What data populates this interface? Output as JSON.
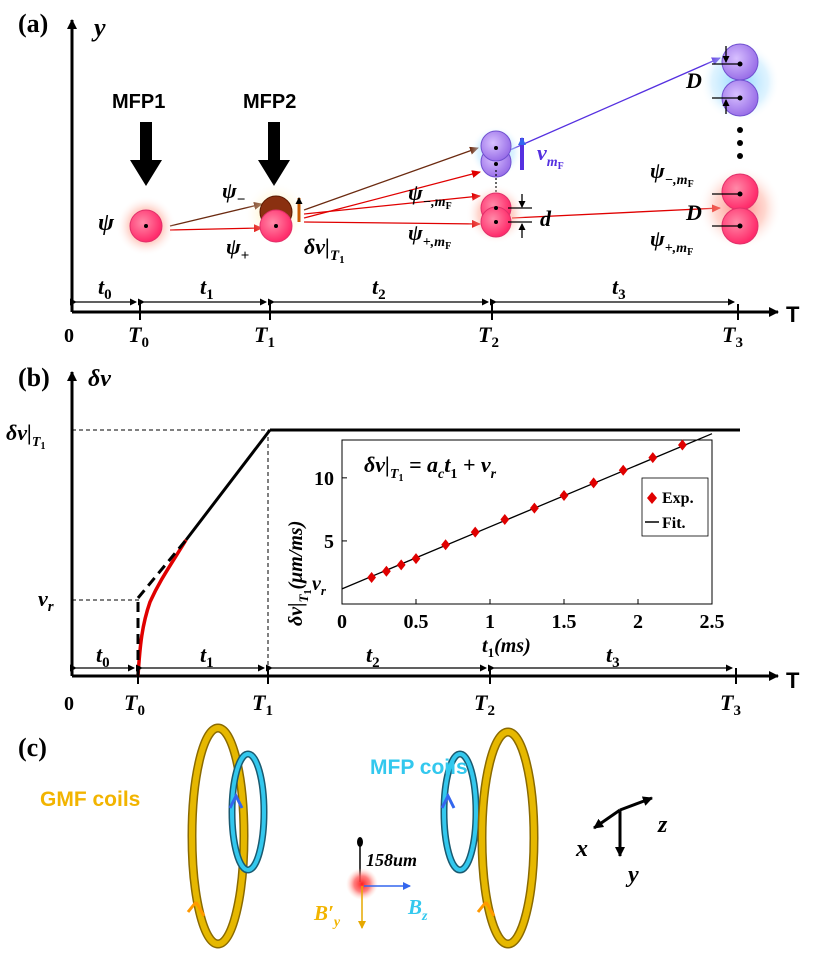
{
  "panels": {
    "a": {
      "label": "(a)",
      "y_axis": "y",
      "x_axis": "T",
      "origin": "0",
      "pulse1": "MFP1",
      "pulse2": "MFP2",
      "psi": "ψ",
      "psi_minus": "ψ",
      "psi_minus_sub": "−",
      "psi_plus": "ψ",
      "psi_plus_sub": "+",
      "delta_v": "δv|",
      "delta_v_sub": "T",
      "delta_v_sub2": "1",
      "psi_minus_mf": "ψ",
      "psi_minus_mf_sub": "−,m",
      "psi_minus_mf_sub2": "F",
      "psi_plus_mf": "ψ",
      "psi_plus_mf_sub": "+,m",
      "psi_plus_mf_sub2": "F",
      "v_mf": "v",
      "v_mf_sub": "m",
      "v_mf_sub2": "F",
      "d": "d",
      "D_top": "D",
      "D_mid": "D",
      "psi_minus_mf_right": "ψ",
      "psi_plus_mf_right": "ψ",
      "intervals": [
        {
          "name": "t",
          "sub": "0"
        },
        {
          "name": "t",
          "sub": "1"
        },
        {
          "name": "t",
          "sub": "2"
        },
        {
          "name": "t",
          "sub": "3"
        }
      ],
      "ticks": [
        {
          "name": "T",
          "sub": "0"
        },
        {
          "name": "T",
          "sub": "1"
        },
        {
          "name": "T",
          "sub": "2"
        },
        {
          "name": "T",
          "sub": "3"
        }
      ]
    },
    "b": {
      "label": "(b)",
      "y_axis": "δv",
      "x_axis": "T",
      "origin": "0",
      "level_label": "δv|",
      "level_sub": "T",
      "level_sub2": "1",
      "vr_label": "v",
      "vr_sub": "r",
      "intervals": [
        {
          "name": "t",
          "sub": "0"
        },
        {
          "name": "t",
          "sub": "1"
        },
        {
          "name": "t",
          "sub": "2"
        },
        {
          "name": "t",
          "sub": "3"
        }
      ],
      "ticks": [
        {
          "name": "T",
          "sub": "0"
        },
        {
          "name": "T",
          "sub": "1"
        },
        {
          "name": "T",
          "sub": "2"
        },
        {
          "name": "T",
          "sub": "3"
        }
      ]
    },
    "c": {
      "label": "(c)",
      "gmf_label": "GMF coils",
      "mfp_label": "MFP coils",
      "distance": "158um",
      "by_label": "B′",
      "by_sub": "y",
      "bz_label": "B",
      "bz_sub": "z",
      "axis_x": "x",
      "axis_y": "y",
      "axis_z": "z"
    }
  },
  "chart_data": {
    "type": "scatter",
    "title": "δv|T1 = a_c t1 + v_r",
    "formula_lhs": "δv|",
    "formula_sub": "T",
    "formula_sub2": "1",
    "formula_rhs": " = a",
    "formula_c": "c",
    "formula_t": "t",
    "formula_t_sub": "1",
    "formula_end": " + v",
    "formula_r": "r",
    "xlabel": "t₁(ms)",
    "xlabel_main": "t",
    "xlabel_sub": "1",
    "xlabel_unit": "(ms)",
    "ylabel": "δv|T1 (μm/ms)",
    "ylabel_main": "δv|",
    "ylabel_sub": "T",
    "ylabel_sub2": "1",
    "ylabel_unit": "(μm/ms)",
    "xlim": [
      0,
      2.5
    ],
    "ylim": [
      0,
      13
    ],
    "xticks": [
      "0",
      "0.5",
      "1",
      "1.5",
      "2",
      "2.5"
    ],
    "yticks": [
      "5",
      "10"
    ],
    "yticks_values": [
      5,
      10
    ],
    "xticks_values": [
      0,
      0.5,
      1,
      1.5,
      2,
      2.5
    ],
    "vr_label": "v",
    "vr_sub": "r",
    "legend": [
      {
        "name": "Exp.",
        "color": "#e00000",
        "marker": "diamond"
      },
      {
        "name": "Fit.",
        "color": "#000000",
        "marker": "line"
      }
    ],
    "series": [
      {
        "name": "Exp.",
        "x": [
          0.2,
          0.3,
          0.4,
          0.5,
          0.7,
          0.9,
          1.1,
          1.3,
          1.5,
          1.7,
          1.9,
          2.1,
          2.3
        ],
        "y": [
          2.1,
          2.6,
          3.1,
          3.6,
          4.7,
          5.7,
          6.7,
          7.6,
          8.6,
          9.6,
          10.6,
          11.6,
          12.6
        ]
      },
      {
        "name": "Fit.",
        "x": [
          0,
          2.5
        ],
        "y": [
          1.2,
          13.5
        ]
      }
    ]
  },
  "colors": {
    "red_line": "#e00000",
    "brown_line": "#6b2a10",
    "blue_line": "#5530e0",
    "purple_arrow": "#5530e0",
    "orange_arrow": "#c85a00",
    "gold": "#e6b800",
    "cyan": "#33c8ee",
    "atom_pink": "#ff3f7f"
  }
}
